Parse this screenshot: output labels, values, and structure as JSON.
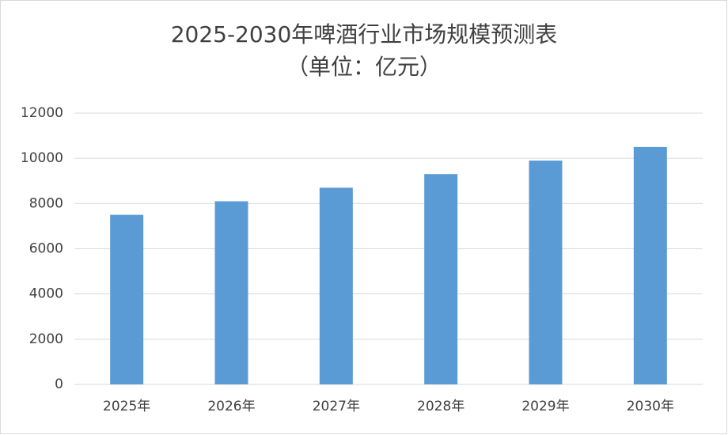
{
  "chart_data": {
    "type": "bar",
    "title": "2025-2030年啤酒行业市场规模预测表",
    "subtitle": "（单位：亿元）",
    "categories": [
      "2025年",
      "2026年",
      "2027年",
      "2028年",
      "2029年",
      "2030年"
    ],
    "values": [
      7500,
      8100,
      8700,
      9300,
      9900,
      10500
    ],
    "color": "#5b9bd5",
    "ylim": [
      0,
      12000
    ],
    "yticks": [
      0,
      2000,
      4000,
      6000,
      8000,
      10000,
      12000
    ],
    "grid": true
  }
}
